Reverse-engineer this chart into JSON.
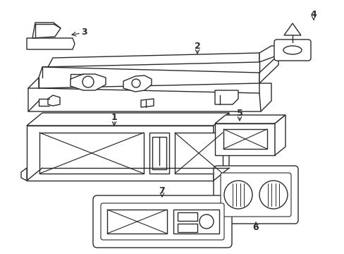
{
  "background_color": "#ffffff",
  "line_color": "#2a2a2a",
  "line_width": 1.0,
  "figsize": [
    4.89,
    3.6
  ],
  "dpi": 100
}
